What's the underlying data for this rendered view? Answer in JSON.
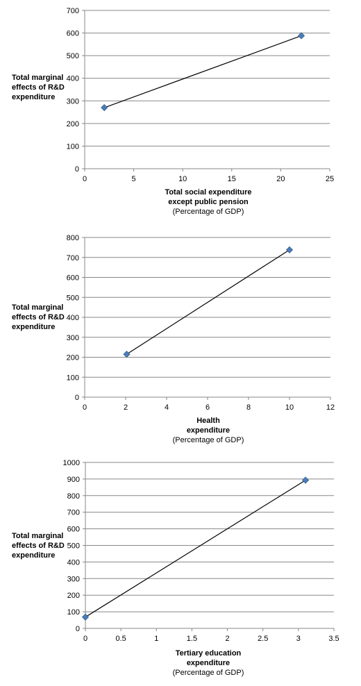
{
  "chart_data": [
    {
      "type": "scatter",
      "ylabel": "Total marginal\neffects of R&D\nexpenditure",
      "xlabel": "Total social expenditure\nexcept public pension",
      "xlabel_sub": "(Percentage of GDP)",
      "xlim": [
        0,
        25
      ],
      "ylim": [
        0,
        700
      ],
      "xticks": [
        0,
        5,
        10,
        15,
        20,
        25
      ],
      "yticks": [
        0,
        100,
        200,
        300,
        400,
        500,
        600,
        700
      ],
      "grid": true,
      "marker": "diamond",
      "marker_color": "#4a7ebb",
      "line_color": "#000000",
      "points": [
        {
          "x": 2,
          "y": 270
        },
        {
          "x": 22.1,
          "y": 588
        }
      ]
    },
    {
      "type": "scatter",
      "ylabel": "Total marginal\neffects of R&D\nexpenditure",
      "xlabel": "Health\nexpenditure",
      "xlabel_sub": "(Percentage of GDP)",
      "xlim": [
        0,
        12
      ],
      "ylim": [
        0,
        800
      ],
      "xticks": [
        0,
        2,
        4,
        6,
        8,
        10,
        12
      ],
      "yticks": [
        0,
        100,
        200,
        300,
        400,
        500,
        600,
        700,
        800
      ],
      "grid": true,
      "marker": "diamond",
      "marker_color": "#4a7ebb",
      "line_color": "#000000",
      "points": [
        {
          "x": 2.05,
          "y": 215
        },
        {
          "x": 10,
          "y": 738
        }
      ]
    },
    {
      "type": "scatter",
      "ylabel": "Total marginal\neffects of R&D\nexpenditure",
      "xlabel": "Tertiary education\nexpenditure",
      "xlabel_sub": "(Percentage of GDP)",
      "xlim": [
        0,
        3.5
      ],
      "ylim": [
        0,
        1000
      ],
      "xticks": [
        0,
        0.5,
        1,
        1.5,
        2,
        2.5,
        3,
        3.5
      ],
      "yticks": [
        0,
        100,
        200,
        300,
        400,
        500,
        600,
        700,
        800,
        900,
        1000
      ],
      "grid": true,
      "marker": "diamond",
      "marker_color": "#4a7ebb",
      "line_color": "#000000",
      "points": [
        {
          "x": 0,
          "y": 68
        },
        {
          "x": 3.1,
          "y": 893
        }
      ]
    }
  ]
}
